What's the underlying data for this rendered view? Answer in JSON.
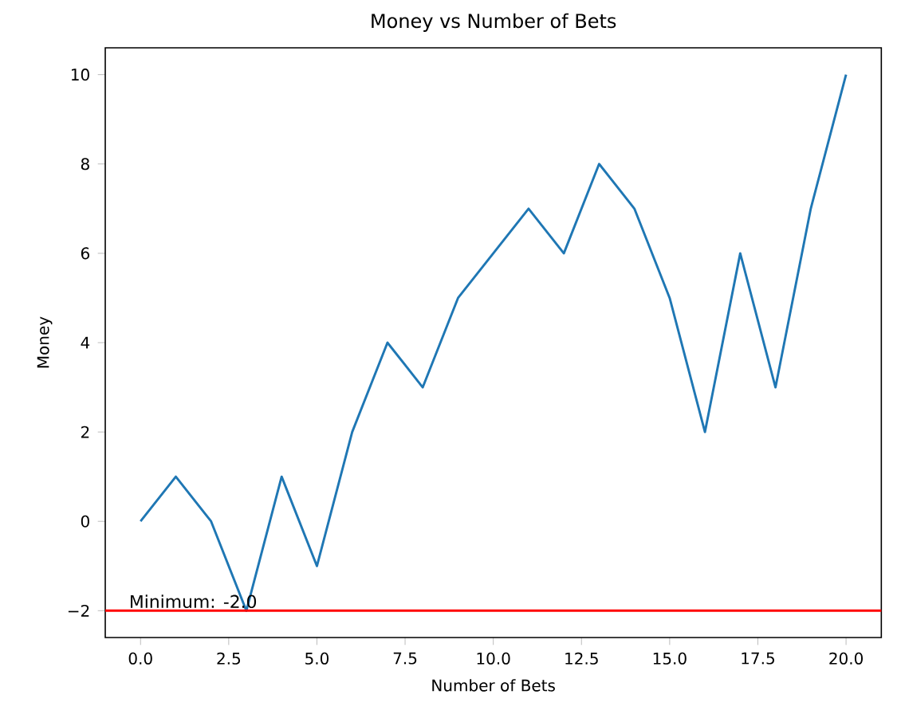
{
  "chart_data": {
    "type": "line",
    "title": "Money vs Number of Bets",
    "xlabel": "Number of Bets",
    "ylabel": "Money",
    "x": [
      0,
      1,
      2,
      3,
      4,
      5,
      6,
      7,
      8,
      9,
      10,
      11,
      12,
      13,
      14,
      15,
      16,
      17,
      18,
      19,
      20
    ],
    "series": [
      {
        "color": "#1f77b4",
        "values": [
          0,
          1,
          0,
          -2,
          1,
          -1,
          2,
          4,
          3,
          5,
          6,
          7,
          6,
          8,
          7,
          5,
          2,
          6,
          3,
          7,
          10
        ]
      }
    ],
    "xlim": [
      -1,
      21
    ],
    "ylim": [
      -2.6,
      10.6
    ],
    "xticks": [
      {
        "value": 0,
        "label": "0.0"
      },
      {
        "value": 2.5,
        "label": "2.5"
      },
      {
        "value": 5,
        "label": "5.0"
      },
      {
        "value": 7.5,
        "label": "7.5"
      },
      {
        "value": 10,
        "label": "10.0"
      },
      {
        "value": 12.5,
        "label": "12.5"
      },
      {
        "value": 15,
        "label": "15.0"
      },
      {
        "value": 17.5,
        "label": "17.5"
      },
      {
        "value": 20,
        "label": "20.0"
      }
    ],
    "yticks": [
      {
        "value": -2,
        "label": "−2"
      },
      0,
      2,
      4,
      6,
      8,
      10
    ],
    "ref_lines": [
      {
        "axis": "y",
        "value": -2,
        "label": "Minimum: -2.0",
        "color": "#ff0000"
      }
    ],
    "marker": "none",
    "line_style": "solid"
  }
}
